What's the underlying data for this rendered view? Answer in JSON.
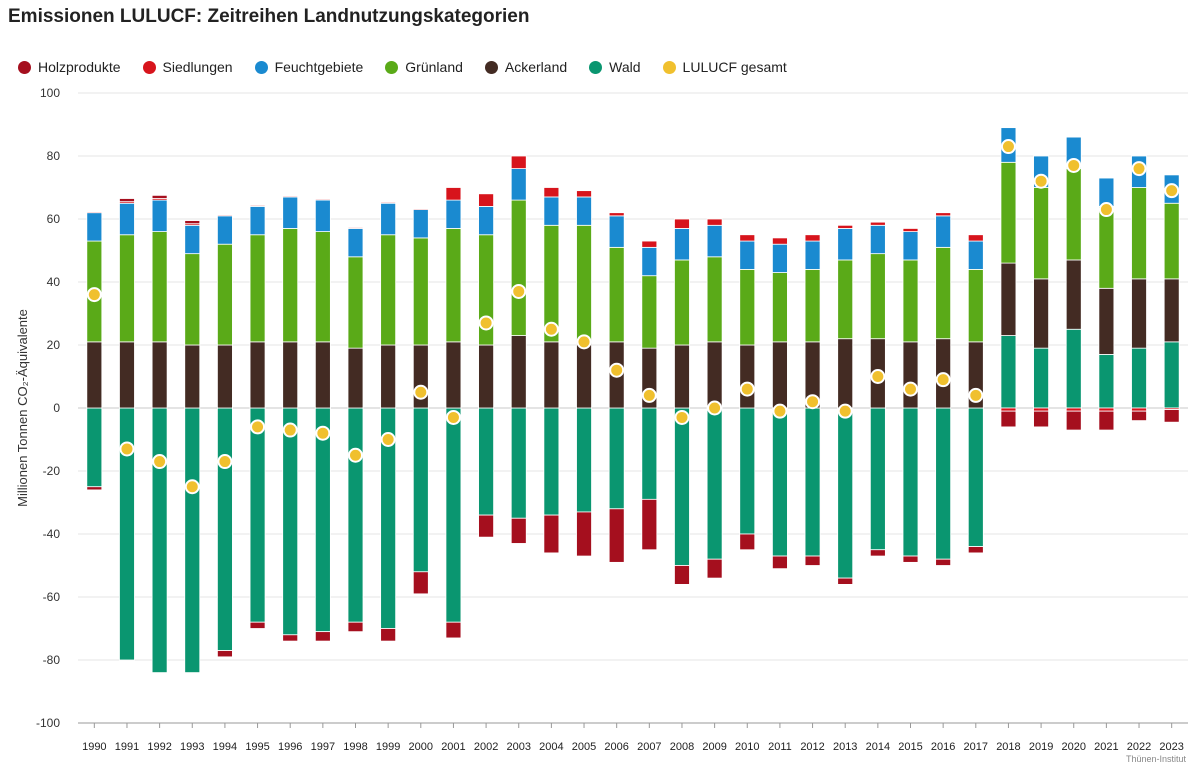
{
  "header": {
    "title": "Emissionen LULUCF: Zeitreihen Landnutzungskategorien",
    "source": "Thünen-Institut"
  },
  "chart_data": {
    "type": "bar",
    "stacked": true,
    "title": "Emissionen LULUCF: Zeitreihen Landnutzungskategorien",
    "xlabel": "",
    "ylabel": "Millionen Tonnen CO₂-Äquivalente",
    "ylim": [
      -100,
      100
    ],
    "yticks": [
      100,
      80,
      60,
      40,
      20,
      0,
      -20,
      -40,
      -60,
      -80,
      -100
    ],
    "grid": true,
    "legend": "top-left",
    "categories": [
      "1990",
      "1991",
      "1992",
      "1993",
      "1994",
      "1995",
      "1996",
      "1997",
      "1998",
      "1999",
      "2000",
      "2001",
      "2002",
      "2003",
      "2004",
      "2005",
      "2006",
      "2007",
      "2008",
      "2009",
      "2010",
      "2011",
      "2012",
      "2013",
      "2014",
      "2015",
      "2016",
      "2017",
      "2018",
      "2019",
      "2020",
      "2021",
      "2022",
      "2023"
    ],
    "series": [
      {
        "name": "Holzprodukte",
        "color": "#a50f1e",
        "values": [
          -1,
          1,
          1,
          1,
          -2,
          -2,
          -2,
          -3,
          -3,
          -4,
          -7,
          -5,
          -7,
          -8,
          -12,
          -14,
          -17,
          -16,
          -6,
          -6,
          -5,
          -4,
          -3,
          -2,
          -2,
          -2,
          -2,
          -2,
          -5,
          -5,
          -6,
          -6,
          -3,
          -4
        ]
      },
      {
        "name": "Siedlungen",
        "color": "#d7141c",
        "values": [
          0.3,
          0.5,
          0.5,
          0.5,
          0.3,
          0.3,
          0.3,
          0.3,
          0.3,
          0.3,
          0.3,
          4,
          4,
          4,
          3,
          2,
          1,
          2,
          3,
          2,
          2,
          2,
          2,
          1,
          1,
          1,
          1,
          2,
          -1,
          -1,
          -1,
          -1,
          -1,
          -0.5
        ]
      },
      {
        "name": "Feuchtgebiete",
        "color": "#1a8ad0",
        "values": [
          9,
          10,
          10,
          9,
          9,
          9,
          10,
          10,
          9,
          10,
          9,
          9,
          9,
          10,
          9,
          9,
          10,
          9,
          10,
          10,
          9,
          9,
          9,
          10,
          9,
          9,
          10,
          9,
          11,
          10,
          10,
          9,
          10,
          9
        ]
      },
      {
        "name": "Grünland",
        "color": "#5aaa18",
        "values": [
          32,
          34,
          35,
          29,
          32,
          34,
          36,
          35,
          29,
          35,
          34,
          36,
          35,
          43,
          37,
          37,
          30,
          23,
          27,
          27,
          24,
          22,
          23,
          25,
          27,
          26,
          29,
          23,
          32,
          29,
          29,
          26,
          29,
          24
        ]
      },
      {
        "name": "Ackerland",
        "color": "#432b23",
        "values": [
          21,
          21,
          21,
          20,
          20,
          21,
          21,
          21,
          19,
          20,
          20,
          21,
          20,
          23,
          21,
          21,
          21,
          19,
          20,
          21,
          20,
          21,
          21,
          22,
          22,
          21,
          22,
          21,
          23,
          22,
          22,
          21,
          22,
          20
        ]
      },
      {
        "name": "Wald",
        "color": "#0a9670",
        "values": [
          -25,
          -80,
          -84,
          -84,
          -77,
          -68,
          -72,
          -71,
          -68,
          -70,
          -52,
          -68,
          -34,
          -35,
          -34,
          -33,
          -32,
          -29,
          -50,
          -48,
          -40,
          -47,
          -47,
          -54,
          -45,
          -47,
          -48,
          -44,
          23,
          19,
          25,
          17,
          19,
          21
        ]
      },
      {
        "name": "LULUCF gesamt",
        "color": "#f0c02e",
        "kind": "point",
        "values": [
          36,
          -13,
          -17,
          -25,
          -17,
          -6,
          -7,
          -8,
          -15,
          -10,
          5,
          -3,
          27,
          37,
          25,
          21,
          12,
          4,
          -3,
          0,
          6,
          -1,
          2,
          -1,
          10,
          6,
          9,
          4,
          83,
          72,
          77,
          63,
          76,
          69
        ]
      }
    ]
  }
}
